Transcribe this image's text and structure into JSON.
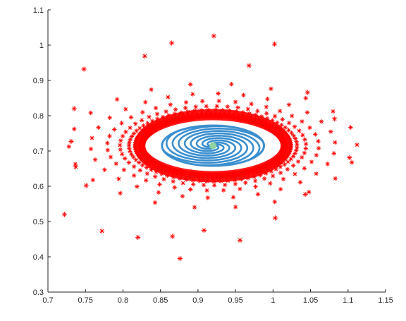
{
  "chart_data": {
    "type": "scatter",
    "title": "",
    "xlabel": "",
    "ylabel": "",
    "xlim": [
      0.7,
      1.15
    ],
    "ylim": [
      0.3,
      1.1
    ],
    "grid": false,
    "box": false,
    "x_ticks": [
      "0.7",
      "0.75",
      "0.8",
      "0.85",
      "0.9",
      "0.95",
      "1",
      "1.05",
      "1.1",
      "1.15"
    ],
    "y_ticks": [
      "0.3",
      "0.4",
      "0.5",
      "0.6",
      "0.7",
      "0.8",
      "0.9",
      "1",
      "1.1"
    ],
    "center": [
      0.92,
      0.715
    ],
    "series": [
      {
        "marker": "*",
        "color": "#ff0000",
        "outer_points": [
          [
            0.921,
            1.026
          ],
          [
            0.865,
            1.006
          ],
          [
            1.002,
            1.003
          ],
          [
            0.748,
            0.932
          ],
          [
            0.829,
            0.969
          ],
          [
            0.735,
            0.82
          ],
          [
            0.731,
            0.727
          ],
          [
            0.737,
            0.655
          ],
          [
            0.751,
            0.602
          ],
          [
            0.722,
            0.52
          ],
          [
            0.772,
            0.473
          ],
          [
            0.82,
            0.455
          ],
          [
            0.876,
            0.395
          ],
          [
            0.956,
            0.447
          ],
          [
            0.908,
            0.475
          ],
          [
            1.102,
            0.681
          ],
          [
            1.082,
            0.791
          ],
          [
            1.046,
            0.866
          ],
          [
            1.043,
            0.577
          ],
          [
            1.003,
            0.51
          ],
          [
            0.968,
            0.942
          ],
          [
            0.866,
            0.458
          ]
        ],
        "rings": [
          {
            "rx": 0.192,
            "ry": 0.176,
            "n": 22,
            "phase": 0.3
          },
          {
            "rx": 0.163,
            "ry": 0.148,
            "n": 30,
            "phase": 0.9
          },
          {
            "rx": 0.141,
            "ry": 0.127,
            "n": 40,
            "phase": 0.1
          },
          {
            "rx": 0.124,
            "ry": 0.112,
            "n": 55,
            "phase": 0.5
          },
          {
            "rx": 0.112,
            "ry": 0.101,
            "n": 75,
            "phase": 0.2
          },
          {
            "rx": 0.104,
            "ry": 0.093,
            "n": 105,
            "phase": 0.7
          },
          {
            "rx": 0.098,
            "ry": 0.087,
            "n": 150,
            "phase": 0.4
          },
          {
            "rx": 0.093,
            "ry": 0.082,
            "n": 200,
            "phase": 0.0
          }
        ]
      },
      {
        "marker": "o",
        "color": "#3b8fcf",
        "ellipse": {
          "rx": 0.068,
          "ry": 0.092
        },
        "spiral_arms": 6,
        "spiral_turns": 1.3
      }
    ]
  }
}
